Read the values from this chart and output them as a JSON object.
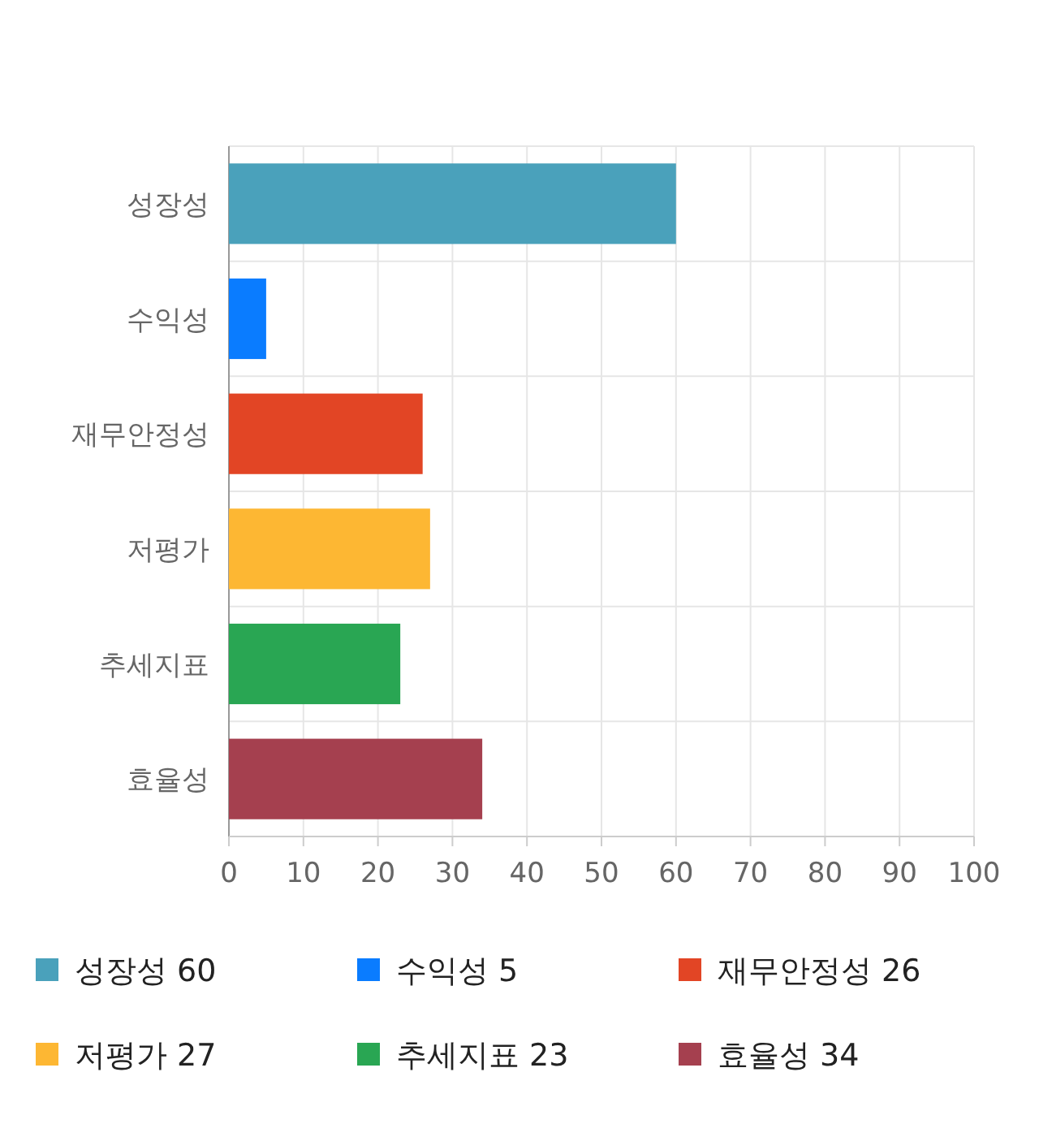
{
  "chart_data": {
    "type": "bar",
    "orientation": "horizontal",
    "stacked": true,
    "categories": [
      "성장성",
      "수익성",
      "재무안정성",
      "저평가",
      "추세지표",
      "효율성"
    ],
    "series": [
      {
        "name": "성장성 60",
        "color": "#4aa1bb",
        "values": [
          60,
          null,
          null,
          null,
          null,
          null
        ]
      },
      {
        "name": "수익성 5",
        "color": "#0a7cff",
        "values": [
          null,
          5,
          null,
          null,
          null,
          null
        ]
      },
      {
        "name": "재무안정성 26",
        "color": "#e24525",
        "values": [
          null,
          null,
          26,
          null,
          null,
          null
        ]
      },
      {
        "name": "저평가 27",
        "color": "#fdb733",
        "values": [
          null,
          null,
          null,
          27,
          null,
          null
        ]
      },
      {
        "name": "추세지표 23",
        "color": "#29a653",
        "values": [
          null,
          null,
          null,
          null,
          23,
          null
        ]
      },
      {
        "name": "효율성 34",
        "color": "#a5404f",
        "values": [
          null,
          null,
          null,
          null,
          null,
          34
        ]
      }
    ],
    "xlim": [
      0,
      100
    ],
    "xticks": [
      0,
      10,
      20,
      30,
      40,
      50,
      60,
      70,
      80,
      90,
      100
    ],
    "grid": true,
    "legend": "bottom"
  }
}
